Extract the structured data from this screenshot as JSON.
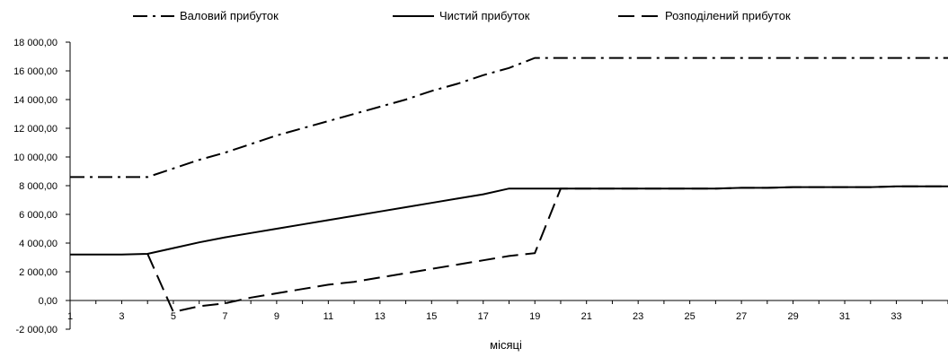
{
  "chart_data": {
    "type": "line",
    "title": "",
    "xlabel": "місяці",
    "ylabel": "",
    "x": [
      1,
      2,
      3,
      4,
      5,
      6,
      7,
      8,
      9,
      10,
      11,
      12,
      13,
      14,
      15,
      16,
      17,
      18,
      19,
      20,
      21,
      22,
      23,
      24,
      25,
      26,
      27,
      28,
      29,
      30,
      31,
      32,
      33,
      34,
      35
    ],
    "x_tick_labels": [
      "1",
      "3",
      "5",
      "7",
      "9",
      "11",
      "13",
      "15",
      "17",
      "19",
      "21",
      "23",
      "25",
      "27",
      "29",
      "31",
      "33"
    ],
    "y_tick_labels": [
      "-2 000,00",
      "0,00",
      "2 000,00",
      "4 000,00",
      "6 000,00",
      "8 000,00",
      "10 000,00",
      "12 000,00",
      "14 000,00",
      "16 000,00",
      "18 000,00"
    ],
    "ylim": [
      -2000,
      18000
    ],
    "xlim": [
      1,
      35
    ],
    "legend_position": "top",
    "grid": false,
    "series": [
      {
        "name": "Валовий прибуток",
        "dash": "dash-dot",
        "values": [
          8600,
          8600,
          8600,
          8600,
          9200,
          9800,
          10300,
          10900,
          11500,
          12000,
          12500,
          13000,
          13500,
          14000,
          14600,
          15100,
          15700,
          16200,
          16900,
          16900,
          16900,
          16900,
          16900,
          16900,
          16900,
          16900,
          16900,
          16900,
          16900,
          16900,
          16900,
          16900,
          16900,
          16900,
          16900
        ]
      },
      {
        "name": "Чистий прибуток",
        "dash": "solid",
        "values": [
          3200,
          3200,
          3200,
          3250,
          3650,
          4050,
          4400,
          4700,
          5000,
          5300,
          5600,
          5900,
          6200,
          6500,
          6800,
          7100,
          7400,
          7800,
          7800,
          7800,
          7800,
          7800,
          7800,
          7800,
          7800,
          7800,
          7850,
          7850,
          7900,
          7900,
          7900,
          7900,
          7950,
          7950,
          7950
        ]
      },
      {
        "name": "Розподілений прибуток",
        "dash": "dashed",
        "x_start": 4,
        "values": [
          null,
          null,
          null,
          3250,
          -800,
          -400,
          -200,
          200,
          500,
          800,
          1100,
          1300,
          1600,
          1900,
          2200,
          2500,
          2800,
          3100,
          3300,
          7800,
          7800,
          7800,
          7800,
          7800,
          7800,
          7800,
          7850,
          7850,
          7900,
          7900,
          7900,
          7900,
          7950,
          7950,
          7950
        ]
      }
    ]
  }
}
